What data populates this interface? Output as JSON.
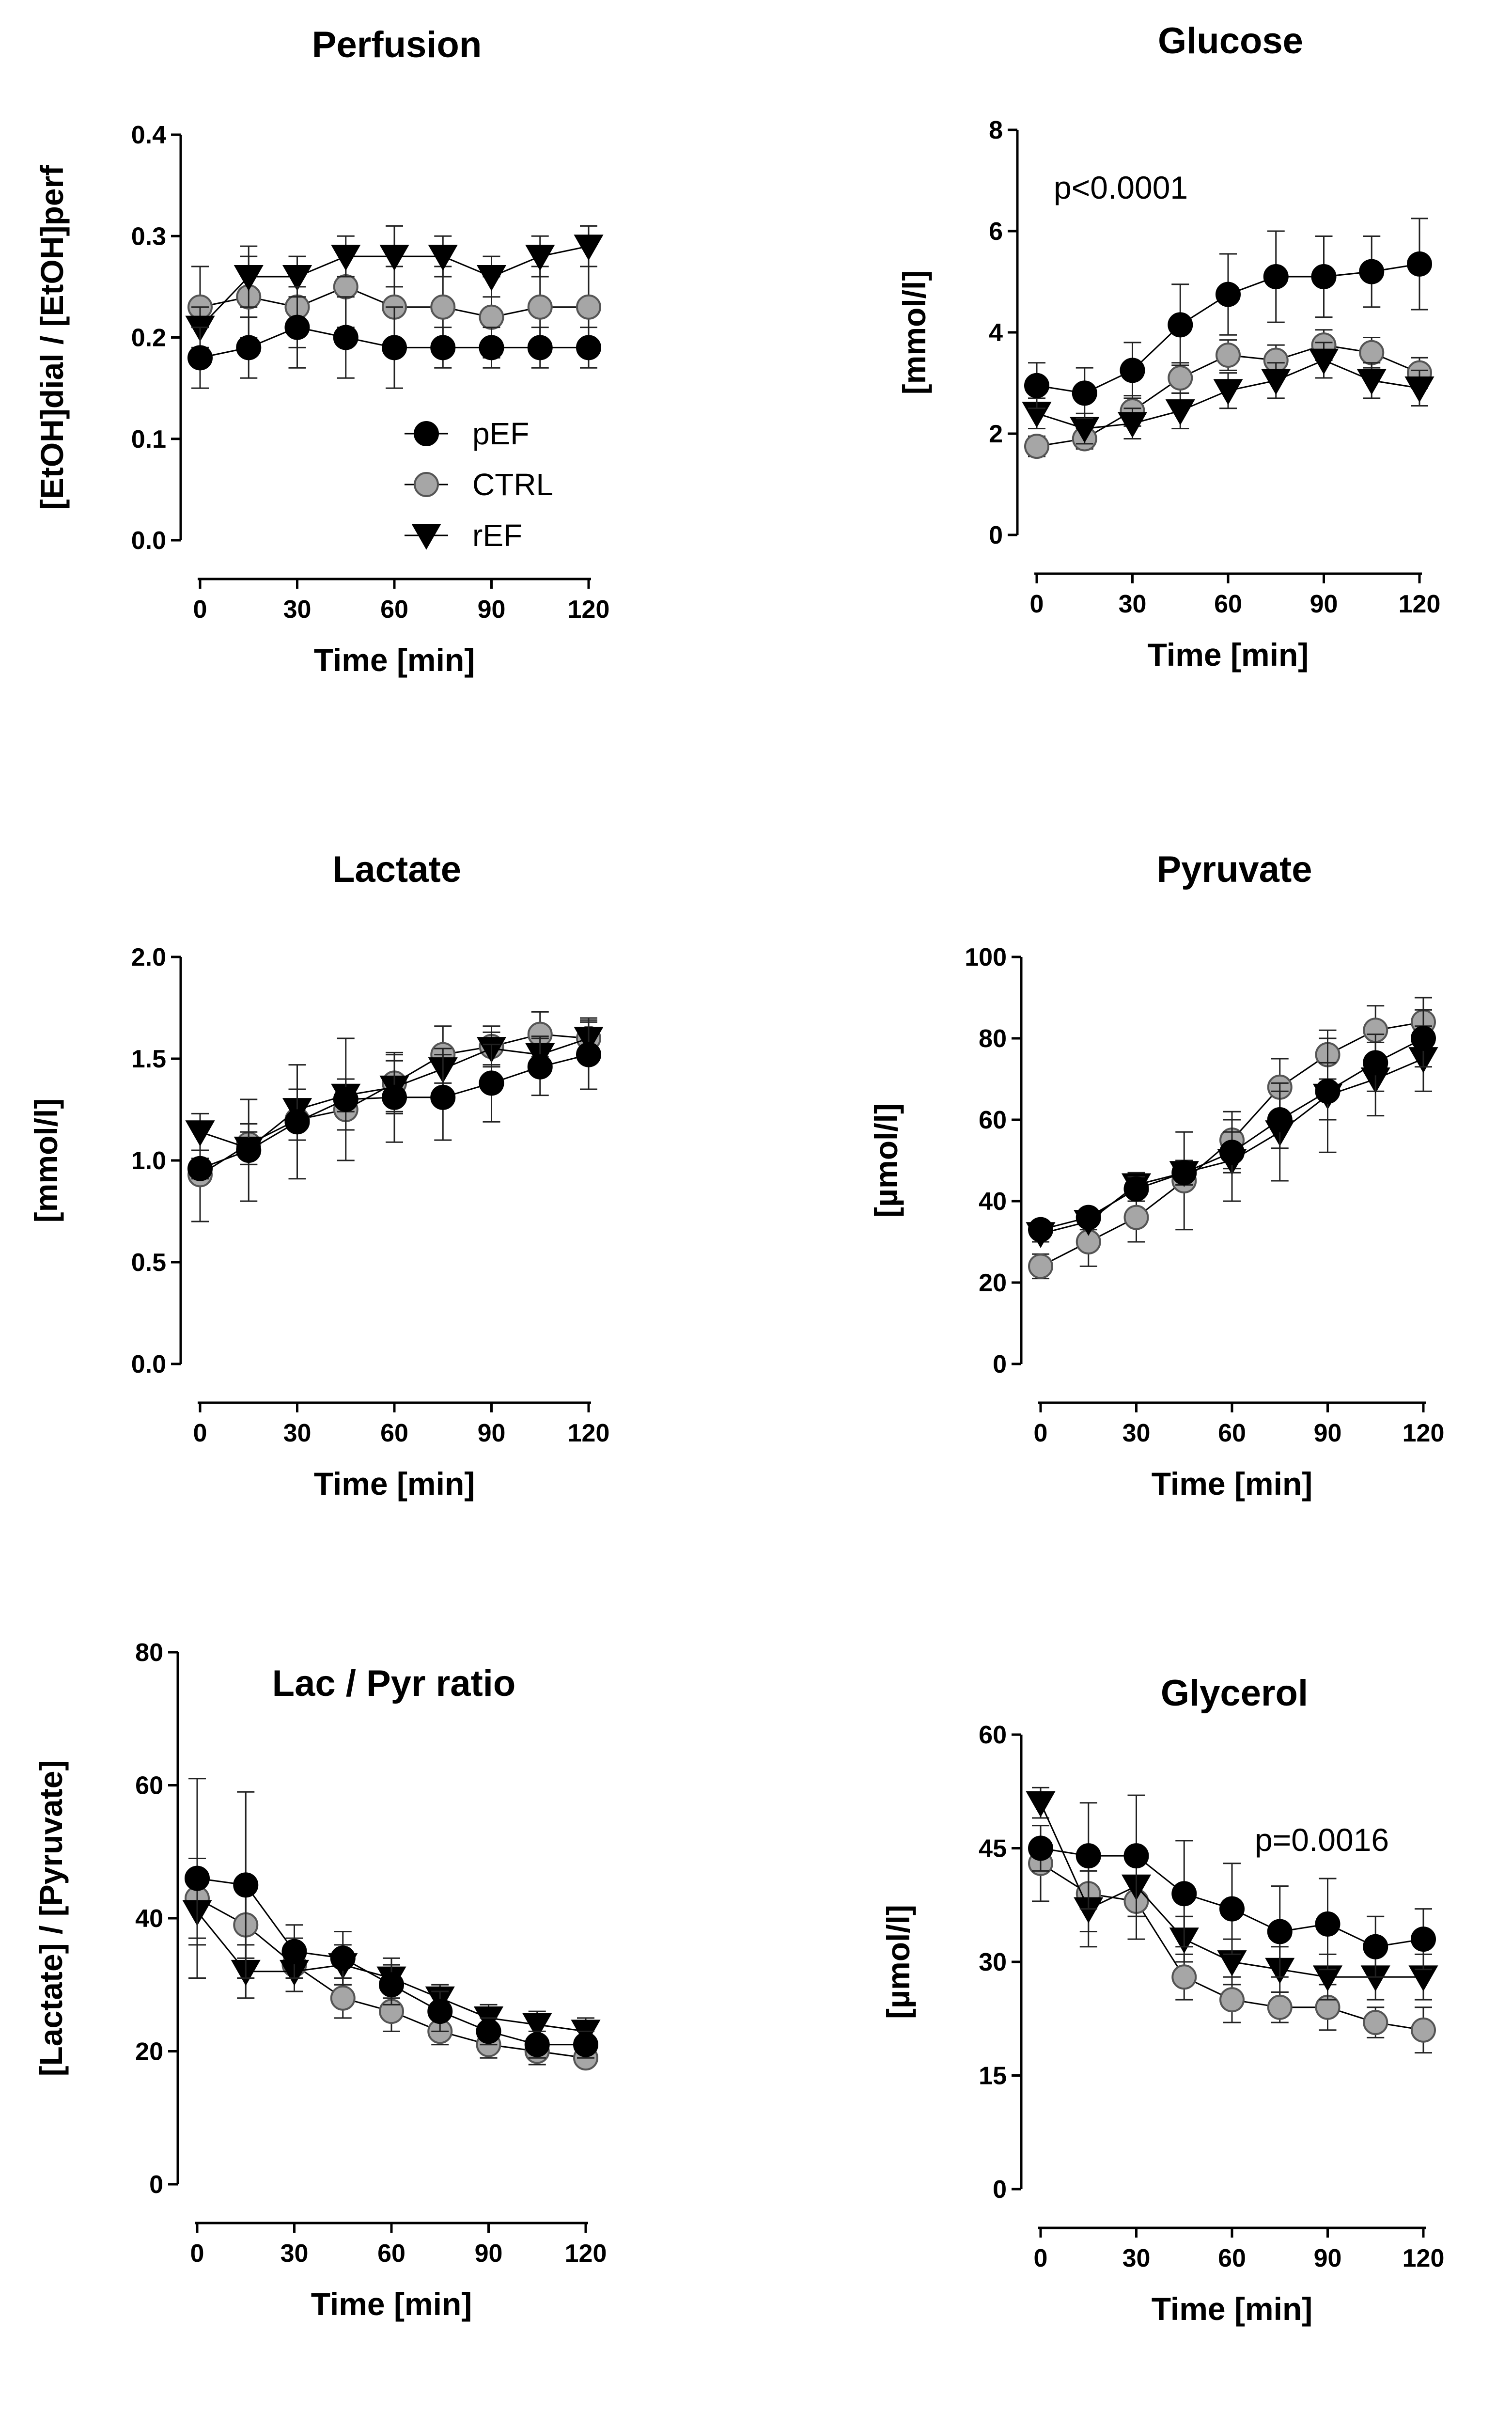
{
  "figure": {
    "legend": {
      "entries": [
        {
          "name": "pEF",
          "marker": "circle",
          "fill": "#000000"
        },
        {
          "name": "CTRL",
          "marker": "circle",
          "fill": "#a6a6a6"
        },
        {
          "name": "rEF",
          "marker": "triangle-down",
          "fill": "#000000"
        }
      ]
    }
  },
  "chart_data": [
    {
      "type": "line",
      "title": "Perfusion",
      "xlabel": "Time [min]",
      "ylabel": "[EtOH]dial / [EtOH]perf",
      "x": [
        0,
        15,
        30,
        45,
        60,
        75,
        90,
        105,
        120
      ],
      "xticks": [
        0,
        30,
        60,
        90,
        120
      ],
      "ylim": [
        0,
        0.4
      ],
      "yticks": [
        0.0,
        0.1,
        0.2,
        0.3,
        0.4
      ],
      "ytick_labels": [
        "0.0",
        "0.1",
        "0.2",
        "0.3",
        "0.4"
      ],
      "annotation": "",
      "legend_position": "bottom-center",
      "series": [
        {
          "name": "pEF",
          "values": [
            0.18,
            0.19,
            0.21,
            0.2,
            0.19,
            0.19,
            0.19,
            0.19,
            0.19
          ],
          "err": [
            0.03,
            0.03,
            0.04,
            0.04,
            0.04,
            0.02,
            0.02,
            0.02,
            0.02
          ]
        },
        {
          "name": "CTRL",
          "values": [
            0.23,
            0.24,
            0.23,
            0.25,
            0.23,
            0.23,
            0.22,
            0.23,
            0.23
          ],
          "err": [
            0.04,
            0.04,
            0.04,
            0.04,
            0.04,
            0.04,
            0.04,
            0.04,
            0.04
          ]
        },
        {
          "name": "rEF",
          "values": [
            0.21,
            0.26,
            0.26,
            0.28,
            0.28,
            0.28,
            0.26,
            0.28,
            0.29
          ],
          "err": [
            0.02,
            0.03,
            0.02,
            0.02,
            0.03,
            0.02,
            0.02,
            0.02,
            0.02
          ]
        }
      ]
    },
    {
      "type": "line",
      "title": "Glucose",
      "xlabel": "Time [min]",
      "ylabel": "[mmol/l]",
      "x": [
        0,
        15,
        30,
        45,
        60,
        75,
        90,
        105,
        120
      ],
      "xticks": [
        0,
        30,
        60,
        90,
        120
      ],
      "ylim": [
        0,
        8
      ],
      "yticks": [
        0,
        2,
        4,
        6,
        8
      ],
      "ytick_labels": [
        "0",
        "2",
        "4",
        "6",
        "8"
      ],
      "annotation": "p<0.0001",
      "series": [
        {
          "name": "pEF",
          "values": [
            2.95,
            2.8,
            3.25,
            4.15,
            4.75,
            5.1,
            5.1,
            5.2,
            5.35
          ],
          "err": [
            0.45,
            0.5,
            0.55,
            0.8,
            0.8,
            0.9,
            0.8,
            0.7,
            0.9
          ]
        },
        {
          "name": "CTRL",
          "values": [
            1.75,
            1.9,
            2.45,
            3.1,
            3.55,
            3.45,
            3.75,
            3.6,
            3.2
          ],
          "err": [
            0.2,
            0.2,
            0.3,
            0.3,
            0.3,
            0.3,
            0.3,
            0.3,
            0.3
          ]
        },
        {
          "name": "rEF",
          "values": [
            2.4,
            2.1,
            2.2,
            2.45,
            2.85,
            3.05,
            3.45,
            3.05,
            2.9
          ],
          "err": [
            0.3,
            0.3,
            0.3,
            0.35,
            0.35,
            0.35,
            0.35,
            0.35,
            0.35
          ]
        }
      ]
    },
    {
      "type": "line",
      "title": "Lactate",
      "xlabel": "Time [min]",
      "ylabel": "[mmol/l]",
      "x": [
        0,
        15,
        30,
        45,
        60,
        75,
        90,
        105,
        120
      ],
      "xticks": [
        0,
        30,
        60,
        90,
        120
      ],
      "ylim": [
        0,
        2.0
      ],
      "yticks": [
        0.0,
        0.5,
        1.0,
        1.5,
        2.0
      ],
      "ytick_labels": [
        "0.0",
        "0.5",
        "1.0",
        "1.5",
        "2.0"
      ],
      "annotation": "",
      "series": [
        {
          "name": "pEF",
          "values": [
            0.96,
            1.05,
            1.19,
            1.3,
            1.31,
            1.31,
            1.38,
            1.46,
            1.52
          ],
          "err": [
            0.05,
            0.25,
            0.28,
            0.3,
            0.22,
            0.21,
            0.19,
            0.14,
            0.17
          ]
        },
        {
          "name": "CTRL",
          "values": [
            0.93,
            1.08,
            1.2,
            1.25,
            1.38,
            1.52,
            1.56,
            1.62,
            1.6
          ],
          "err": [
            0.23,
            0.1,
            0.1,
            0.1,
            0.14,
            0.14,
            0.1,
            0.11,
            0.1
          ]
        },
        {
          "name": "rEF",
          "values": [
            1.14,
            1.06,
            1.25,
            1.32,
            1.36,
            1.45,
            1.55,
            1.52,
            1.6
          ],
          "err": [
            0.09,
            0.08,
            0.1,
            0.08,
            0.13,
            0.1,
            0.08,
            0.09,
            0.08
          ]
        }
      ]
    },
    {
      "type": "line",
      "title": "Pyruvate",
      "xlabel": "Time [min]",
      "ylabel": "[µmol/l]",
      "x": [
        0,
        15,
        30,
        45,
        60,
        75,
        90,
        105,
        120
      ],
      "xticks": [
        0,
        30,
        60,
        90,
        120
      ],
      "ylim": [
        0,
        100
      ],
      "yticks": [
        0,
        20,
        40,
        60,
        80,
        100
      ],
      "ytick_labels": [
        "0",
        "20",
        "40",
        "60",
        "80",
        "100"
      ],
      "annotation": "",
      "series": [
        {
          "name": "pEF",
          "values": [
            33,
            36,
            43,
            47,
            52,
            60,
            67,
            74,
            80
          ],
          "err": [
            2,
            2,
            3,
            3,
            5,
            7,
            7,
            7,
            7
          ]
        },
        {
          "name": "CTRL",
          "values": [
            24,
            30,
            36,
            45,
            55,
            68,
            76,
            82,
            84
          ],
          "err": [
            3,
            6,
            6,
            12,
            7,
            7,
            6,
            6,
            6
          ]
        },
        {
          "name": "rEF",
          "values": [
            32,
            35,
            44,
            47,
            50,
            57,
            66,
            70,
            75
          ],
          "err": [
            2,
            2,
            3,
            3,
            10,
            12,
            14,
            9,
            8
          ]
        }
      ]
    },
    {
      "type": "line",
      "title": "Lac / Pyr ratio",
      "xlabel": "Time [min]",
      "ylabel": "[Lactate] / [Pyruvate]",
      "x": [
        0,
        15,
        30,
        45,
        60,
        75,
        90,
        105,
        120
      ],
      "xticks": [
        0,
        30,
        60,
        90,
        120
      ],
      "ylim": [
        0,
        80
      ],
      "yticks": [
        0,
        20,
        40,
        60,
        80
      ],
      "ytick_labels": [
        "0",
        "20",
        "40",
        "60",
        "80"
      ],
      "annotation": "",
      "series": [
        {
          "name": "pEF",
          "values": [
            46,
            45,
            35,
            34,
            30,
            26,
            23,
            21,
            21
          ],
          "err": [
            15,
            14,
            4,
            4,
            3,
            3,
            2,
            2,
            2
          ]
        },
        {
          "name": "CTRL",
          "values": [
            43,
            39,
            33,
            28,
            26,
            23,
            21,
            20,
            19
          ],
          "err": [
            6,
            5,
            4,
            3,
            3,
            2,
            2,
            2,
            1
          ]
        },
        {
          "name": "rEF",
          "values": [
            41,
            32,
            32,
            33,
            31,
            28,
            25,
            24,
            23
          ],
          "err": [
            5,
            4,
            3,
            3,
            3,
            2,
            2,
            2,
            2
          ]
        }
      ]
    },
    {
      "type": "line",
      "title": "Glycerol",
      "xlabel": "Time [min]",
      "ylabel": "[µmol/l]",
      "x": [
        0,
        15,
        30,
        45,
        60,
        75,
        90,
        105,
        120
      ],
      "xticks": [
        0,
        30,
        60,
        90,
        120
      ],
      "ylim": [
        0,
        60
      ],
      "yticks": [
        0,
        15,
        30,
        45,
        60
      ],
      "ytick_labels": [
        "0",
        "15",
        "30",
        "45",
        "60"
      ],
      "annotation": "p=0.0016",
      "series": [
        {
          "name": "pEF",
          "values": [
            45,
            44,
            44,
            39,
            37,
            34,
            35,
            32,
            33
          ],
          "err": [
            3,
            7,
            8,
            7,
            6,
            6,
            6,
            4,
            4
          ]
        },
        {
          "name": "CTRL",
          "values": [
            43,
            39,
            38,
            28,
            25,
            24,
            24,
            22,
            21
          ],
          "err": [
            5,
            5,
            5,
            3,
            3,
            2,
            3,
            2,
            3
          ]
        },
        {
          "name": "rEF",
          "values": [
            51,
            37,
            40,
            33,
            30,
            29,
            28,
            28,
            28
          ],
          "err": [
            2,
            5,
            4,
            3,
            3,
            3,
            3,
            3,
            3
          ]
        }
      ]
    }
  ]
}
